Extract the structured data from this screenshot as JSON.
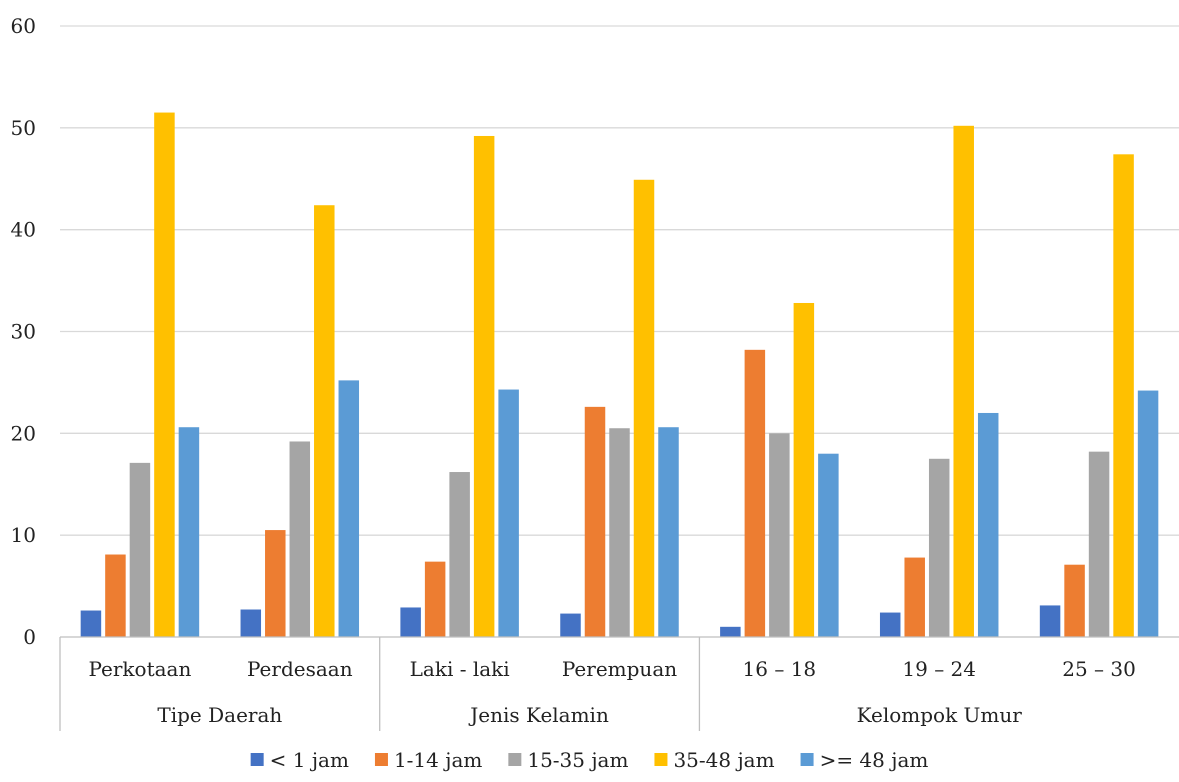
{
  "chart_data": {
    "type": "bar",
    "title": "",
    "xlabel": "",
    "ylabel": "",
    "ylim": [
      0,
      60
    ],
    "yticks": [
      0,
      10,
      20,
      30,
      40,
      50,
      60
    ],
    "grid": true,
    "legend_position": "bottom",
    "groups": [
      {
        "label": "Tipe Daerah",
        "categories": [
          "Perkotaan",
          "Perdesaan"
        ]
      },
      {
        "label": "Jenis Kelamin",
        "categories": [
          "Laki - laki",
          "Perempuan"
        ]
      },
      {
        "label": "Kelompok Umur",
        "categories": [
          "16 – 18",
          "19 – 24",
          "25 – 30"
        ]
      }
    ],
    "categories": [
      "Perkotaan",
      "Perdesaan",
      "Laki - laki",
      "Perempuan",
      "16 – 18",
      "19 – 24",
      "25 – 30"
    ],
    "series": [
      {
        "name": "< 1 jam",
        "color": "#4472c4",
        "values": [
          2.6,
          2.7,
          2.9,
          2.3,
          1.0,
          2.4,
          3.1
        ]
      },
      {
        "name": "1-14 jam",
        "color": "#ed7d31",
        "values": [
          8.1,
          10.5,
          7.4,
          22.6,
          28.2,
          7.8,
          7.1
        ]
      },
      {
        "name": "15-35 jam",
        "color": "#a5a5a5",
        "values": [
          17.1,
          19.2,
          16.2,
          20.5,
          20.0,
          17.5,
          18.2
        ]
      },
      {
        "name": "35-48 jam",
        "color": "#ffc000",
        "values": [
          51.5,
          42.4,
          49.2,
          44.9,
          32.8,
          50.2,
          47.4
        ]
      },
      {
        "name": ">= 48 jam",
        "color": "#5b9bd5",
        "values": [
          20.6,
          25.2,
          24.3,
          20.6,
          18.0,
          22.0,
          24.2
        ]
      }
    ]
  }
}
